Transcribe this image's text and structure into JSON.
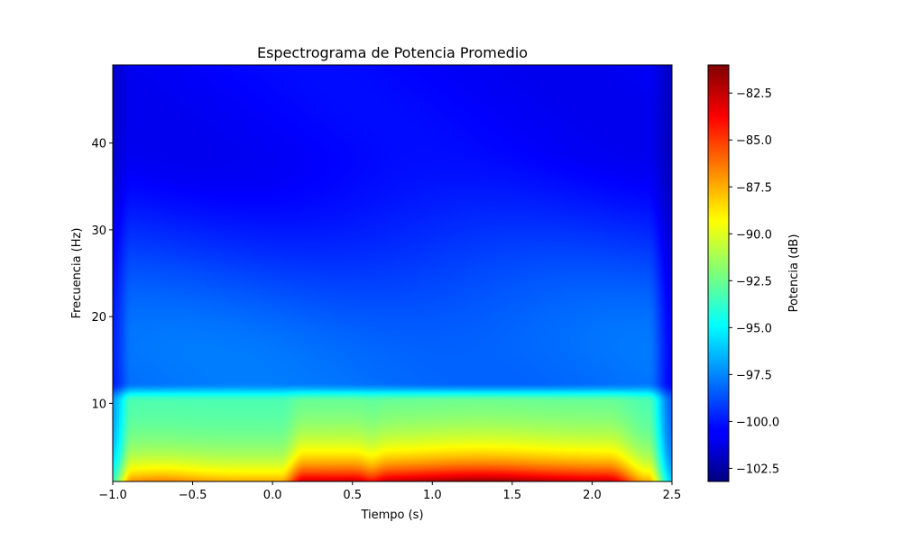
{
  "chart_data": {
    "type": "heatmap",
    "title": "Espectrograma de Potencia Promedio",
    "xlabel": "Tiempo (s)",
    "ylabel": "Frecuencia (Hz)",
    "xlim": [
      -1.0,
      2.5
    ],
    "ylim": [
      1,
      49
    ],
    "x_ticks": [
      -1.0,
      -0.5,
      0.0,
      0.5,
      1.0,
      1.5,
      2.0,
      2.5
    ],
    "x_tick_labels": [
      "−1.0",
      "−0.5",
      "0.0",
      "0.5",
      "1.0",
      "1.5",
      "2.0",
      "2.5"
    ],
    "y_ticks": [
      10,
      20,
      30,
      40
    ],
    "y_tick_labels": [
      "10",
      "20",
      "30",
      "40"
    ],
    "colormap": "jet",
    "colorbar": {
      "label": "Potencia (dB)",
      "vmin": -103.2,
      "vmax": -81.0,
      "ticks": [
        -82.5,
        -85.0,
        -87.5,
        -90.0,
        -92.5,
        -95.0,
        -97.5,
        -100.0,
        -102.5
      ],
      "tick_labels": [
        "−82.5",
        "−85.0",
        "−87.5",
        "−90.0",
        "−92.5",
        "−95.0",
        "−97.5",
        "−100.0",
        "−102.5"
      ],
      "position": "right"
    },
    "time_s": [
      -1.0,
      -0.9,
      -0.8,
      -0.7,
      -0.6,
      -0.5,
      -0.4,
      -0.3,
      -0.2,
      -0.1,
      0.0,
      0.1,
      0.2,
      0.3,
      0.4,
      0.5,
      0.6,
      0.7,
      0.8,
      0.9,
      1.0,
      1.1,
      1.2,
      1.3,
      1.4,
      1.5,
      1.6,
      1.7,
      1.8,
      1.9,
      2.0,
      2.1,
      2.2,
      2.3,
      2.4,
      2.5
    ],
    "frequency_hz": [
      1,
      2,
      3,
      4,
      5,
      6,
      7,
      8,
      9,
      10,
      11,
      12,
      13,
      14,
      15,
      16,
      17,
      18,
      20,
      23,
      26,
      29,
      32,
      35,
      38,
      41,
      44,
      47,
      49
    ],
    "power_db_profile": {
      "low_band_peak_time_s": 1.3,
      "low_band_peak_db": -81.2,
      "low_band_baseline_db": -87.5,
      "alpha_band_db": -92.0,
      "transition_freq_hz": 11,
      "mid_band_db": -98.0,
      "high_band_db": -100.5,
      "edge_db": -102.5
    }
  }
}
